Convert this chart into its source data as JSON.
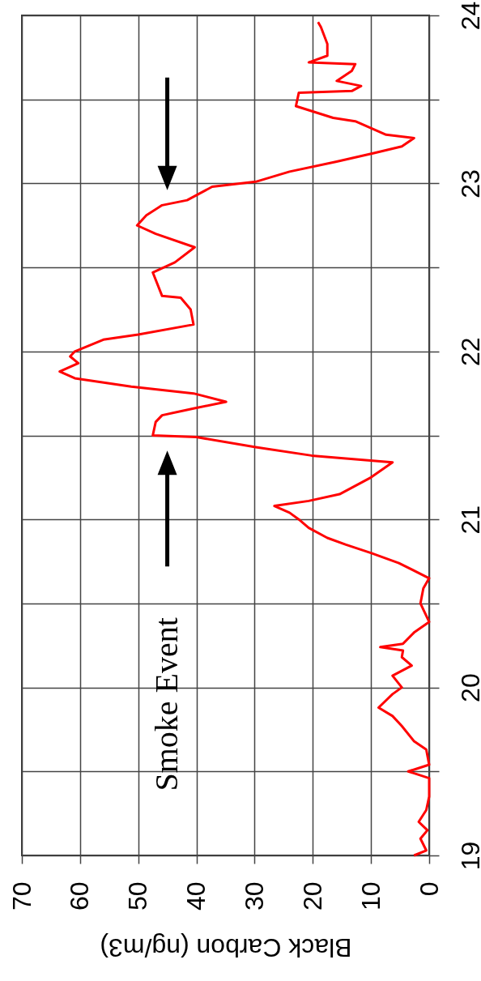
{
  "chart_data": {
    "type": "line",
    "xlabel": "Black Carbon (ng/m3)",
    "color": "#ff0000",
    "x": [
      2.6,
      0.5,
      1.5,
      0.3,
      1.8,
      0.5,
      0,
      0,
      3.6,
      0,
      0.5,
      2.6,
      4.7,
      6.3,
      8.7,
      6.3,
      4.7,
      6.3,
      3.0,
      4.7,
      4.5,
      8.4,
      4.5,
      2.5,
      0,
      1.5,
      1.0,
      0,
      5.2,
      10,
      14.3,
      17.5,
      20.7,
      22.4,
      24,
      26.6,
      20.7,
      15.4,
      10,
      6.3,
      20.2,
      29.8,
      40,
      47.5,
      47,
      45.9,
      40.5,
      34.9,
      40.5,
      51.2,
      60.9,
      63.5,
      60.3,
      61.7,
      60.9,
      56,
      50,
      40.5,
      41,
      42.7,
      45.9,
      47.5,
      43.7,
      40.3,
      47,
      50.2,
      48.6,
      45.9,
      41.6,
      37.3,
      29.8,
      24,
      15.9,
      9.5,
      4.7,
      2.6,
      7.4,
      12.7,
      16.5,
      22.9,
      22.4,
      13.3,
      11.7,
      15.9,
      13.3,
      12.7,
      20.7,
      17.5,
      17.5,
      18.6,
      19.1
    ],
    "values": [
      19.0,
      19.03,
      19.1,
      19.15,
      19.2,
      19.27,
      19.35,
      19.46,
      19.5,
      19.54,
      19.63,
      19.68,
      19.77,
      19.83,
      19.88,
      19.96,
      20.0,
      20.07,
      20.13,
      20.18,
      20.22,
      20.24,
      20.26,
      20.33,
      20.39,
      20.5,
      20.59,
      20.65,
      20.74,
      20.8,
      20.85,
      20.89,
      20.95,
      21.0,
      21.04,
      21.08,
      21.11,
      21.15,
      21.25,
      21.34,
      21.38,
      21.43,
      21.49,
      21.5,
      21.58,
      21.62,
      21.66,
      21.7,
      21.75,
      21.79,
      21.84,
      21.88,
      21.93,
      21.97,
      22.0,
      22.07,
      22.1,
      22.16,
      22.25,
      22.32,
      22.33,
      22.47,
      22.53,
      22.62,
      22.7,
      22.75,
      22.81,
      22.87,
      22.9,
      22.98,
      23.01,
      23.07,
      23.13,
      23.18,
      23.22,
      23.27,
      23.29,
      23.37,
      23.39,
      23.46,
      23.54,
      23.55,
      23.58,
      23.61,
      23.67,
      23.71,
      23.72,
      23.76,
      23.83,
      23.93,
      23.96
    ],
    "ylim": [
      19,
      24
    ],
    "yticks": [
      19,
      {
        "value": 19.5,
        "label": null
      },
      20,
      {
        "value": 20.5,
        "label": null
      },
      21,
      {
        "value": 21.5,
        "label": null
      },
      22,
      {
        "value": 22.5,
        "label": null
      },
      23,
      {
        "value": 23.5,
        "label": null
      },
      24
    ],
    "xlim": [
      70,
      0
    ],
    "xticks": [
      70,
      60,
      50,
      40,
      30,
      20,
      10,
      0
    ],
    "grid": true,
    "annotations": [
      "Smoke Event"
    ]
  }
}
